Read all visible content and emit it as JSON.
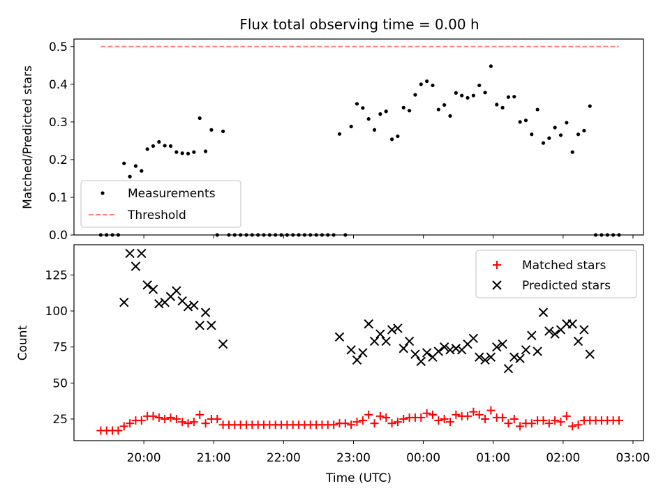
{
  "chart_data": [
    {
      "type": "scatter",
      "title": "Flux total observing time = 0.00 h",
      "xlabel": "",
      "ylabel": "Matched/Predicted stars",
      "ylim": [
        0,
        0.52
      ],
      "xlim": [
        "19:00",
        "03:09"
      ],
      "yticks": [
        "0.0",
        "0.1",
        "0.2",
        "0.3",
        "0.4",
        "0.5"
      ],
      "grid": false,
      "legend": {
        "location": "lower-left",
        "entries": [
          "Measurements",
          "Threshold"
        ]
      },
      "series": [
        {
          "name": "Measurements",
          "marker": "dot",
          "color": "#000000",
          "points": [
            [
              "19:23",
              0
            ],
            [
              "19:28",
              0
            ],
            [
              "19:33",
              0
            ],
            [
              "19:38",
              0
            ],
            [
              "19:43",
              0.19
            ],
            [
              "19:48",
              0.155
            ],
            [
              "19:53",
              0.183
            ],
            [
              "19:58",
              0.17
            ],
            [
              "20:03",
              0.228
            ],
            [
              "20:08",
              0.236
            ],
            [
              "20:13",
              0.247
            ],
            [
              "20:18",
              0.237
            ],
            [
              "20:23",
              0.236
            ],
            [
              "20:28",
              0.22
            ],
            [
              "20:33",
              0.217
            ],
            [
              "20:38",
              0.216
            ],
            [
              "20:43",
              0.22
            ],
            [
              "20:48",
              0.31
            ],
            [
              "20:53",
              0.222
            ],
            [
              "20:58",
              0.279
            ],
            [
              "21:03",
              0
            ],
            [
              "21:08",
              0.275
            ],
            [
              "21:13",
              0
            ],
            [
              "21:18",
              0
            ],
            [
              "21:23",
              0
            ],
            [
              "21:28",
              0
            ],
            [
              "21:33",
              0
            ],
            [
              "21:38",
              0
            ],
            [
              "21:43",
              0
            ],
            [
              "21:48",
              0
            ],
            [
              "21:53",
              0
            ],
            [
              "21:58",
              0
            ],
            [
              "22:03",
              0
            ],
            [
              "22:08",
              0
            ],
            [
              "22:13",
              0
            ],
            [
              "22:18",
              0
            ],
            [
              "22:23",
              0
            ],
            [
              "22:28",
              0
            ],
            [
              "22:33",
              0
            ],
            [
              "22:38",
              0
            ],
            [
              "22:43",
              0
            ],
            [
              "22:48",
              0.268
            ],
            [
              "22:53",
              0
            ],
            [
              "22:58",
              0.288
            ],
            [
              "23:03",
              0.348
            ],
            [
              "23:08",
              0.337
            ],
            [
              "23:13",
              0.308
            ],
            [
              "23:18",
              0.279
            ],
            [
              "23:23",
              0.321
            ],
            [
              "23:28",
              0.328
            ],
            [
              "23:33",
              0.254
            ],
            [
              "23:38",
              0.262
            ],
            [
              "23:43",
              0.338
            ],
            [
              "23:48",
              0.33
            ],
            [
              "23:53",
              0.372
            ],
            [
              "23:58",
              0.4
            ],
            [
              "00:03",
              0.408
            ],
            [
              "00:08",
              0.397
            ],
            [
              "00:13",
              0.333
            ],
            [
              "00:18",
              0.345
            ],
            [
              "00:23",
              0.316
            ],
            [
              "00:28",
              0.377
            ],
            [
              "00:33",
              0.37
            ],
            [
              "00:38",
              0.364
            ],
            [
              "00:43",
              0.37
            ],
            [
              "00:48",
              0.397
            ],
            [
              "00:53",
              0.378
            ],
            [
              "00:58",
              0.448
            ],
            [
              "01:03",
              0.346
            ],
            [
              "01:08",
              0.338
            ],
            [
              "01:13",
              0.366
            ],
            [
              "01:18",
              0.367
            ],
            [
              "01:23",
              0.3
            ],
            [
              "01:28",
              0.304
            ],
            [
              "01:33",
              0.267
            ],
            [
              "01:38",
              0.333
            ],
            [
              "01:43",
              0.244
            ],
            [
              "01:48",
              0.257
            ],
            [
              "01:53",
              0.285
            ],
            [
              "01:58",
              0.265
            ],
            [
              "02:03",
              0.298
            ],
            [
              "02:08",
              0.22
            ],
            [
              "02:13",
              0.267
            ],
            [
              "02:18",
              0.277
            ],
            [
              "02:23",
              0.342
            ],
            [
              "02:28",
              0
            ],
            [
              "02:33",
              0
            ],
            [
              "02:38",
              0
            ],
            [
              "02:43",
              0
            ],
            [
              "02:48",
              0
            ]
          ]
        },
        {
          "name": "Threshold",
          "style": "dashed-line",
          "color": "#ff7f7f",
          "points": [
            [
              "19:23",
              0.5
            ],
            [
              "02:48",
              0.5
            ]
          ]
        }
      ]
    },
    {
      "type": "scatter",
      "title": "",
      "xlabel": "Time (UTC)",
      "ylabel": "Count",
      "ylim": [
        10,
        146
      ],
      "xlim": [
        "19:00",
        "03:09"
      ],
      "xticks": [
        "20:00",
        "21:00",
        "22:00",
        "23:00",
        "00:00",
        "01:00",
        "02:00",
        "03:00"
      ],
      "yticks": [
        "25",
        "50",
        "75",
        "100",
        "125"
      ],
      "grid": false,
      "legend": {
        "location": "top-right",
        "entries": [
          "Matched stars",
          "Predicted stars"
        ]
      },
      "series": [
        {
          "name": "Matched stars",
          "marker": "plus",
          "color": "#ff0000",
          "points": [
            [
              "19:23",
              17
            ],
            [
              "19:28",
              17
            ],
            [
              "19:33",
              17
            ],
            [
              "19:38",
              17
            ],
            [
              "19:43",
              20
            ],
            [
              "19:48",
              22
            ],
            [
              "19:53",
              24
            ],
            [
              "19:58",
              24
            ],
            [
              "20:03",
              27
            ],
            [
              "20:08",
              27
            ],
            [
              "20:13",
              26
            ],
            [
              "20:18",
              25
            ],
            [
              "20:23",
              26
            ],
            [
              "20:28",
              25
            ],
            [
              "20:33",
              23
            ],
            [
              "20:38",
              22
            ],
            [
              "20:43",
              23
            ],
            [
              "20:48",
              28
            ],
            [
              "20:53",
              22
            ],
            [
              "20:58",
              25
            ],
            [
              "21:03",
              25
            ],
            [
              "21:08",
              21
            ],
            [
              "21:13",
              21
            ],
            [
              "21:18",
              21
            ],
            [
              "21:23",
              21
            ],
            [
              "21:28",
              21
            ],
            [
              "21:33",
              21
            ],
            [
              "21:38",
              21
            ],
            [
              "21:43",
              21
            ],
            [
              "21:48",
              21
            ],
            [
              "21:53",
              21
            ],
            [
              "21:58",
              21
            ],
            [
              "22:03",
              21
            ],
            [
              "22:08",
              21
            ],
            [
              "22:13",
              21
            ],
            [
              "22:18",
              21
            ],
            [
              "22:23",
              21
            ],
            [
              "22:28",
              21
            ],
            [
              "22:33",
              21
            ],
            [
              "22:38",
              21
            ],
            [
              "22:43",
              21
            ],
            [
              "22:48",
              22
            ],
            [
              "22:53",
              22
            ],
            [
              "22:58",
              21
            ],
            [
              "23:03",
              23
            ],
            [
              "23:08",
              24
            ],
            [
              "23:13",
              28
            ],
            [
              "23:18",
              22
            ],
            [
              "23:23",
              27
            ],
            [
              "23:28",
              26
            ],
            [
              "23:33",
              22
            ],
            [
              "23:38",
              23
            ],
            [
              "23:43",
              25
            ],
            [
              "23:48",
              26
            ],
            [
              "23:53",
              26
            ],
            [
              "23:58",
              26
            ],
            [
              "00:03",
              29
            ],
            [
              "00:08",
              28
            ],
            [
              "00:13",
              24
            ],
            [
              "00:18",
              25
            ],
            [
              "00:23",
              23
            ],
            [
              "00:28",
              28
            ],
            [
              "00:33",
              27
            ],
            [
              "00:38",
              27
            ],
            [
              "00:43",
              30
            ],
            [
              "00:48",
              28
            ],
            [
              "00:53",
              25
            ],
            [
              "00:58",
              31
            ],
            [
              "01:03",
              26
            ],
            [
              "01:08",
              26
            ],
            [
              "01:13",
              22
            ],
            [
              "01:18",
              25
            ],
            [
              "01:23",
              20
            ],
            [
              "01:28",
              22
            ],
            [
              "01:33",
              22
            ],
            [
              "01:38",
              24
            ],
            [
              "01:43",
              24
            ],
            [
              "01:48",
              22
            ],
            [
              "01:53",
              24
            ],
            [
              "01:58",
              23
            ],
            [
              "02:03",
              27
            ],
            [
              "02:08",
              20
            ],
            [
              "02:13",
              21
            ],
            [
              "02:18",
              24
            ],
            [
              "02:23",
              24
            ],
            [
              "02:28",
              24
            ],
            [
              "02:33",
              24
            ],
            [
              "02:38",
              24
            ],
            [
              "02:43",
              24
            ],
            [
              "02:48",
              24
            ]
          ]
        },
        {
          "name": "Predicted stars",
          "marker": "x",
          "color": "#000000",
          "points": [
            [
              "19:43",
              106
            ],
            [
              "19:48",
              140
            ],
            [
              "19:53",
              131
            ],
            [
              "19:58",
              140
            ],
            [
              "20:03",
              118
            ],
            [
              "20:08",
              115
            ],
            [
              "20:13",
              105
            ],
            [
              "20:18",
              106
            ],
            [
              "20:23",
              110
            ],
            [
              "20:28",
              114
            ],
            [
              "20:33",
              107
            ],
            [
              "20:38",
              103
            ],
            [
              "20:43",
              104
            ],
            [
              "20:48",
              90
            ],
            [
              "20:53",
              99
            ],
            [
              "20:58",
              90
            ],
            [
              "21:08",
              77
            ],
            [
              "22:48",
              82
            ],
            [
              "22:58",
              73
            ],
            [
              "23:03",
              66
            ],
            [
              "23:08",
              71
            ],
            [
              "23:13",
              91
            ],
            [
              "23:18",
              79
            ],
            [
              "23:23",
              84
            ],
            [
              "23:28",
              79
            ],
            [
              "23:33",
              87
            ],
            [
              "23:38",
              88
            ],
            [
              "23:43",
              74
            ],
            [
              "23:48",
              79
            ],
            [
              "23:53",
              70
            ],
            [
              "23:58",
              65
            ],
            [
              "00:03",
              71
            ],
            [
              "00:08",
              68
            ],
            [
              "00:13",
              72
            ],
            [
              "00:18",
              75
            ],
            [
              "00:23",
              73
            ],
            [
              "00:28",
              74
            ],
            [
              "00:33",
              73
            ],
            [
              "00:38",
              77
            ],
            [
              "00:43",
              81
            ],
            [
              "00:48",
              68
            ],
            [
              "00:53",
              66
            ],
            [
              "00:58",
              68
            ],
            [
              "01:03",
              75
            ],
            [
              "01:08",
              77
            ],
            [
              "01:13",
              60
            ],
            [
              "01:18",
              68
            ],
            [
              "01:23",
              67
            ],
            [
              "01:28",
              73
            ],
            [
              "01:33",
              83
            ],
            [
              "01:38",
              72
            ],
            [
              "01:43",
              99
            ],
            [
              "01:48",
              86
            ],
            [
              "01:53",
              84
            ],
            [
              "01:58",
              87
            ],
            [
              "02:03",
              91
            ],
            [
              "02:08",
              91
            ],
            [
              "02:13",
              79
            ],
            [
              "02:18",
              87
            ],
            [
              "02:23",
              70
            ]
          ]
        }
      ]
    }
  ]
}
